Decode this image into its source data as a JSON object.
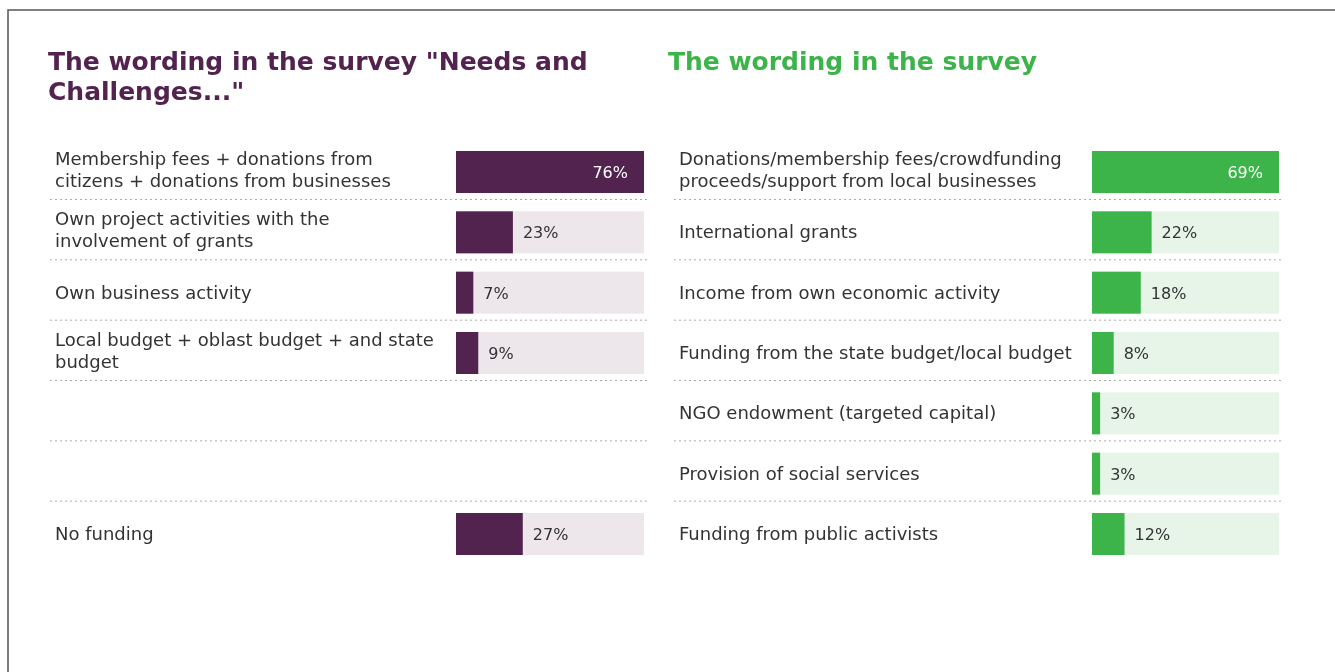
{
  "chart_data": [
    {
      "type": "bar",
      "orientation": "horizontal",
      "title": "The wording in the survey \"Needs and Challenges...\"",
      "categories": [
        "Membership fees + donations from citizens + donations from businesses",
        "Own project activities with the involvement of grants",
        "Own business activity",
        "Local budget + oblast budget + and state budget",
        null,
        null,
        "No funding"
      ],
      "series": [
        {
          "color": "#52234f",
          "values": [
            76,
            23,
            7,
            9,
            null,
            null,
            27
          ],
          "value_labels": [
            "76%",
            "23%",
            "7%",
            "9%",
            null,
            null,
            "27%"
          ]
        }
      ]
    },
    {
      "type": "bar",
      "orientation": "horizontal",
      "title": "The wording in the survey",
      "categories": [
        "Donations/membership fees/crowdfunding proceeds/support from local businesses",
        "International grants",
        "Income from own economic activity",
        "Funding from the state budget/local budget",
        "NGO endowment (targeted capital)",
        "Provision of social services",
        "Funding from public activists"
      ],
      "series": [
        {
          "color": "#3cb44a",
          "values": [
            69,
            22,
            18,
            8,
            3,
            3,
            12
          ],
          "value_labels": [
            "69%",
            "22%",
            "18%",
            "8%",
            "3%",
            "3%",
            "12%"
          ]
        }
      ]
    }
  ]
}
